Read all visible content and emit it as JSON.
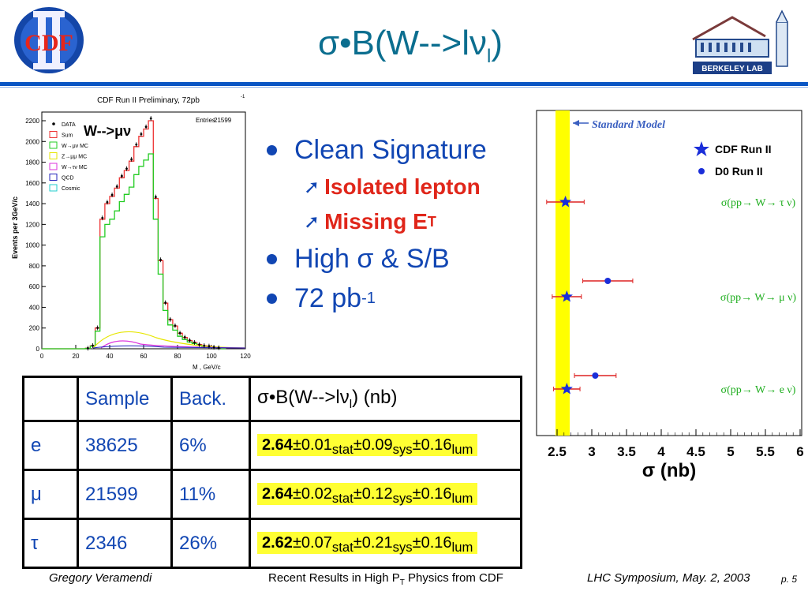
{
  "title": "σ•B(W-->lν",
  "title_sub": "l",
  "title_end": ")",
  "logos": {
    "left": "CDF",
    "right": "BERKELEY LAB"
  },
  "histogram": {
    "header": "CDF Run II Preliminary, 72pb",
    "header_sup": "-1",
    "process_label": "W-->μν",
    "ylabel": "Events per 3GeV/c",
    "xlabel": "M  , GeV/c",
    "entries_label": "Entries",
    "entries_value": "21599",
    "legend": [
      "DATA",
      "Sum",
      "W→μν MC",
      "Z→μμ MC",
      "W→τν MC",
      "QCD",
      "Cosmic"
    ],
    "y_ticks": [
      "0",
      "200",
      "400",
      "600",
      "800",
      "1000",
      "1200",
      "1400",
      "1600",
      "1800",
      "2000",
      "2200"
    ],
    "x_ticks": [
      "0",
      "20",
      "40",
      "60",
      "80",
      "100",
      "120"
    ]
  },
  "bullets": [
    {
      "level": 1,
      "text": "Clean Signature"
    },
    {
      "level": 2,
      "text": "Isolated lepton"
    },
    {
      "level": 2,
      "text": "Missing E",
      "sub": "T"
    },
    {
      "level": 1,
      "text": "High σ & S/B"
    },
    {
      "level": 1,
      "text": "72 pb",
      "sup": "-1"
    }
  ],
  "table": {
    "headers": [
      "",
      "Sample",
      "Back.",
      "σ•B(W-->lν",
      "l",
      ") (nb)"
    ],
    "rows": [
      {
        "lepton": "e",
        "sample": "38625",
        "back": "6%",
        "val": "2.64",
        "stat": "0.01",
        "sys": "0.09",
        "lum": "0.16"
      },
      {
        "lepton": "μ",
        "sample": "21599",
        "back": "11%",
        "val": "2.64",
        "stat": "0.02",
        "sys": "0.12",
        "lum": "0.16"
      },
      {
        "lepton": "τ",
        "sample": "2346",
        "back": "26%",
        "val": "2.62",
        "stat": "0.07",
        "sys": "0.21",
        "lum": "0.16"
      }
    ],
    "labels": {
      "stat": "stat",
      "sys": "sys",
      "lum": "lum",
      "pm": "±"
    }
  },
  "comparison": {
    "band_label": "Standard Model",
    "legend_cdf": "CDF Run II",
    "legend_d0": "D0 Run II",
    "xlabel": "σ (nb)",
    "x_ticks": [
      "2.5",
      "3",
      "3.5",
      "4",
      "4.5",
      "5",
      "5.5",
      "6"
    ],
    "rows": [
      {
        "label": "σ(pp→ W→ τ ν)",
        "cdf": 2.62,
        "cdf_err": 0.27,
        "d0": null,
        "d0_err": null
      },
      {
        "label": "σ(pp→ W→ μ ν)",
        "cdf": 2.64,
        "cdf_err": 0.21,
        "d0": 3.23,
        "d0_err": 0.36
      },
      {
        "label": "σ(pp→ W→ e ν)",
        "cdf": 2.64,
        "cdf_err": 0.19,
        "d0": 3.05,
        "d0_err": 0.3
      }
    ]
  },
  "footer": {
    "author": "Gregory Veramendi",
    "talk": "Recent Results in High P",
    "talk_sub": "T",
    "talk_end": " Physics from CDF",
    "event": "LHC Symposium, May. 2, 2003",
    "page": "p. 5"
  },
  "colors": {
    "title": "#0b6e8f",
    "accent": "#0a56c4",
    "bullet": "#1146b3",
    "red": "#e0261a",
    "band": "#ffff00",
    "highlight": "#ffff33"
  }
}
